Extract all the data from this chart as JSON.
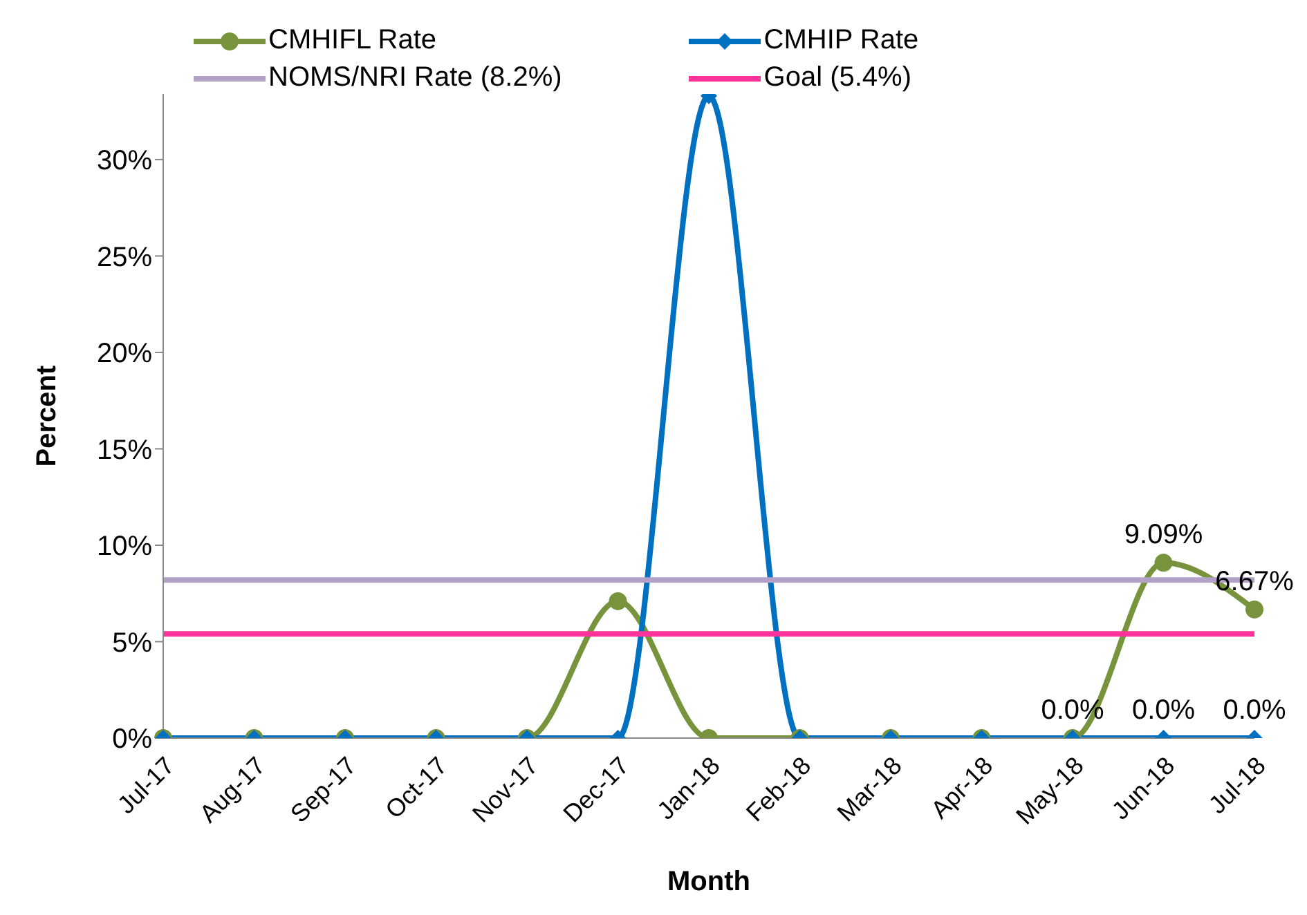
{
  "chart_data": {
    "type": "line",
    "xlabel": "Month",
    "ylabel": "Percent",
    "categories": [
      "Jul-17",
      "Aug-17",
      "Sep-17",
      "Oct-17",
      "Nov-17",
      "Dec-17",
      "Jan-18",
      "Feb-18",
      "Mar-18",
      "Apr-18",
      "May-18",
      "Jun-18",
      "Jul-18"
    ],
    "series": [
      {
        "name": "CMHIFL Rate",
        "color": "#77933c",
        "marker": "circle",
        "values": [
          0,
          0,
          0,
          0,
          0,
          7.1,
          0,
          0,
          0,
          0,
          0,
          9.09,
          6.67
        ],
        "value_labels": [
          null,
          null,
          null,
          null,
          null,
          null,
          null,
          null,
          null,
          null,
          "0.0%",
          "9.09%",
          "6.67%"
        ]
      },
      {
        "name": "CMHIP Rate",
        "color": "#0070c0",
        "marker": "diamond",
        "values": [
          0,
          0,
          0,
          0,
          0,
          0,
          33.3,
          0,
          0,
          0,
          0,
          0,
          0
        ],
        "value_labels": [
          null,
          null,
          null,
          null,
          null,
          null,
          null,
          null,
          null,
          null,
          null,
          "0.0%",
          "0.0%"
        ]
      },
      {
        "name": "NOMS/NRI Rate (8.2%)",
        "color": "#b3a2c7",
        "marker": "none",
        "values": [
          8.2,
          8.2,
          8.2,
          8.2,
          8.2,
          8.2,
          8.2,
          8.2,
          8.2,
          8.2,
          8.2,
          8.2,
          8.2
        ]
      },
      {
        "name": "Goal (5.4%)",
        "color": "#ff3399",
        "marker": "none",
        "values": [
          5.4,
          5.4,
          5.4,
          5.4,
          5.4,
          5.4,
          5.4,
          5.4,
          5.4,
          5.4,
          5.4,
          5.4,
          5.4
        ]
      }
    ],
    "ylim": [
      0,
      33.4
    ],
    "yticks": [
      {
        "value": 0,
        "label": "0%"
      },
      {
        "value": 5,
        "label": "5%"
      },
      {
        "value": 10,
        "label": "10%"
      },
      {
        "value": 15,
        "label": "15%"
      },
      {
        "value": 20,
        "label": "20%"
      },
      {
        "value": 25,
        "label": "25%"
      },
      {
        "value": 30,
        "label": "30%"
      }
    ],
    "grid": false,
    "legend": "top",
    "line_style": "solid"
  }
}
